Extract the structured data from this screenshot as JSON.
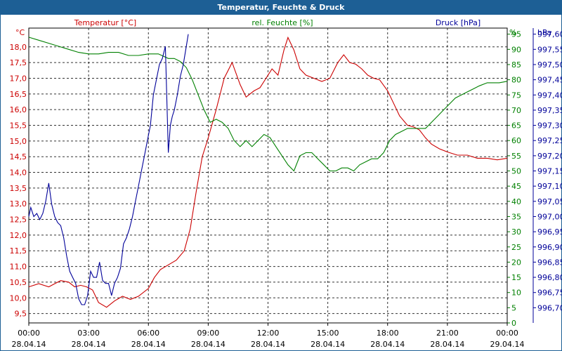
{
  "colors": {
    "temperature": "#cc0000",
    "humidity": "#008000",
    "pressure": "#000099",
    "titlebar": "#1d5f95"
  },
  "chart_data": {
    "type": "line",
    "title": "Temperatur, Feuchte & Druck",
    "grid": true,
    "x_ticks": [
      {
        "time": "00:00",
        "date": "28.04.14"
      },
      {
        "time": "03:00",
        "date": "28.04.14"
      },
      {
        "time": "06:00",
        "date": "28.04.14"
      },
      {
        "time": "09:00",
        "date": "28.04.14"
      },
      {
        "time": "12:00",
        "date": "28.04.14"
      },
      {
        "time": "15:00",
        "date": "28.04.14"
      },
      {
        "time": "18:00",
        "date": "28.04.14"
      },
      {
        "time": "21:00",
        "date": "28.04.14"
      },
      {
        "time": "00:00",
        "date": "29.04.14"
      }
    ],
    "axes": {
      "temperature": {
        "label": "Temperatur [°C]",
        "unit": "°C",
        "ylim": [
          9.2,
          18.6
        ],
        "ticks": [
          "9,5",
          "10,0",
          "10,5",
          "11,0",
          "11,5",
          "12,0",
          "12,5",
          "13,0",
          "13,5",
          "14,0",
          "14,5",
          "15,0",
          "15,5",
          "16,0",
          "16,5",
          "17,0",
          "17,5",
          "18,0"
        ]
      },
      "humidity": {
        "label": "rel. Feuchte [%]",
        "unit": "%",
        "ylim": [
          0,
          97
        ],
        "ticks": [
          "0",
          "5",
          "10",
          "15",
          "20",
          "25",
          "30",
          "35",
          "40",
          "45",
          "50",
          "55",
          "60",
          "65",
          "70",
          "75",
          "80",
          "85",
          "90",
          "95"
        ]
      },
      "pressure": {
        "label": "Druck [hPa]",
        "unit": "hPa",
        "ylim": [
          996.65,
          997.62
        ],
        "ticks": [
          "996,70",
          "996,75",
          "996,80",
          "996,85",
          "996,90",
          "996,95",
          "997,00",
          "997,05",
          "997,10",
          "997,15",
          "997,20",
          "997,25",
          "997,30",
          "997,35",
          "997,40",
          "997,45",
          "997,50",
          "997,55",
          "997,60"
        ]
      }
    },
    "series": [
      {
        "name": "Temperatur [°C]",
        "axis": "temperature",
        "x": [
          0,
          0.5,
          1.0,
          1.3,
          1.6,
          2.0,
          2.3,
          2.6,
          2.9,
          3.2,
          3.5,
          3.9,
          4.3,
          4.7,
          5.1,
          5.5,
          6.0,
          6.3,
          6.6,
          7.0,
          7.4,
          7.8,
          8.1,
          8.4,
          8.7,
          9.0,
          9.4,
          9.8,
          10.2,
          10.6,
          10.9,
          11.3,
          11.6,
          11.9,
          12.2,
          12.5,
          12.8,
          13.0,
          13.3,
          13.6,
          13.9,
          14.3,
          14.7,
          15.1,
          15.5,
          15.8,
          16.1,
          16.4,
          16.7,
          17.0,
          17.3,
          17.6,
          18.0,
          18.3,
          18.6,
          19.0,
          19.3,
          19.6,
          19.9,
          20.2,
          20.6,
          21.0,
          21.5,
          22.0,
          22.5,
          23.0,
          23.5,
          24.0
        ],
        "y": [
          10.35,
          10.45,
          10.35,
          10.45,
          10.55,
          10.5,
          10.35,
          10.4,
          10.35,
          10.25,
          9.85,
          9.7,
          9.9,
          10.05,
          9.95,
          10.05,
          10.3,
          10.65,
          10.9,
          11.05,
          11.2,
          11.5,
          12.2,
          13.4,
          14.5,
          15.1,
          16.0,
          17.0,
          17.5,
          16.8,
          16.4,
          16.6,
          16.7,
          17.0,
          17.3,
          17.1,
          17.9,
          18.3,
          17.9,
          17.3,
          17.1,
          17.0,
          16.9,
          17.0,
          17.5,
          17.75,
          17.5,
          17.45,
          17.3,
          17.1,
          17.0,
          16.95,
          16.6,
          16.2,
          15.8,
          15.5,
          15.45,
          15.35,
          15.1,
          14.9,
          14.75,
          14.65,
          14.55,
          14.55,
          14.45,
          14.45,
          14.4,
          14.45
        ]
      },
      {
        "name": "rel. Feuchte [%]",
        "axis": "humidity",
        "x": [
          0,
          0.5,
          1.0,
          1.5,
          2.0,
          2.5,
          3.0,
          3.5,
          4.0,
          4.5,
          5.0,
          5.5,
          6.0,
          6.5,
          7.0,
          7.3,
          7.6,
          7.9,
          8.2,
          8.5,
          8.8,
          9.1,
          9.4,
          9.7,
          10.0,
          10.3,
          10.6,
          10.9,
          11.2,
          11.5,
          11.8,
          12.1,
          12.4,
          12.7,
          13.0,
          13.3,
          13.6,
          13.9,
          14.2,
          14.5,
          14.8,
          15.1,
          15.4,
          15.7,
          16.0,
          16.3,
          16.6,
          16.9,
          17.2,
          17.5,
          17.8,
          18.1,
          18.4,
          18.7,
          19.0,
          19.3,
          19.6,
          19.9,
          20.2,
          20.5,
          20.8,
          21.1,
          21.4,
          21.7,
          22.0,
          22.3,
          22.6,
          23.0,
          23.3,
          23.6,
          24.0
        ],
        "y": [
          94,
          93,
          92,
          91,
          90,
          89,
          88.5,
          88.5,
          89,
          89,
          88,
          88,
          88.5,
          88.5,
          87,
          87,
          86,
          84,
          80,
          75,
          70,
          66,
          67,
          66,
          64,
          60,
          58,
          60,
          58,
          60,
          62,
          61,
          58,
          55,
          52,
          50,
          55,
          56,
          56,
          54,
          52,
          50,
          50,
          51,
          51,
          50,
          52,
          53,
          54,
          54,
          56,
          60,
          62,
          63,
          64,
          64,
          64,
          64,
          66,
          68,
          70,
          72,
          74,
          75,
          76,
          77,
          78,
          79,
          79,
          79,
          79.5
        ]
      },
      {
        "name": "Druck [hPa]",
        "axis": "pressure",
        "x": [
          0.0,
          0.1,
          0.25,
          0.4,
          0.55,
          0.7,
          0.85,
          1.0,
          1.15,
          1.3,
          1.45,
          1.6,
          1.75,
          1.9,
          2.05,
          2.2,
          2.35,
          2.5,
          2.65,
          2.8,
          2.95,
          3.1,
          3.25,
          3.4,
          3.55,
          3.7,
          3.85,
          4.0,
          4.15,
          4.3,
          4.45,
          4.6,
          4.75,
          4.9,
          5.05,
          5.2,
          5.35,
          5.5,
          5.65,
          5.8,
          5.95,
          6.1,
          6.25,
          6.4,
          6.55,
          6.7,
          6.85,
          7.0,
          7.1,
          7.2,
          7.3,
          7.45,
          7.6,
          7.75,
          7.9,
          8.0
        ],
        "y": [
          997.0,
          997.03,
          997.0,
          997.01,
          996.99,
          997.01,
          997.05,
          997.11,
          997.04,
          997.0,
          996.98,
          996.97,
          996.93,
          996.87,
          996.82,
          996.8,
          996.78,
          996.73,
          996.71,
          996.71,
          996.74,
          996.82,
          996.8,
          996.8,
          996.85,
          996.79,
          996.78,
          996.78,
          996.74,
          996.78,
          996.8,
          996.83,
          996.91,
          996.93,
          996.96,
          997.0,
          997.05,
          997.1,
          997.15,
          997.2,
          997.25,
          997.3,
          997.4,
          997.45,
          997.5,
          997.52,
          997.56,
          997.21,
          997.3,
          997.33,
          997.35,
          997.4,
          997.46,
          997.5,
          997.56,
          997.6
        ]
      }
    ]
  }
}
